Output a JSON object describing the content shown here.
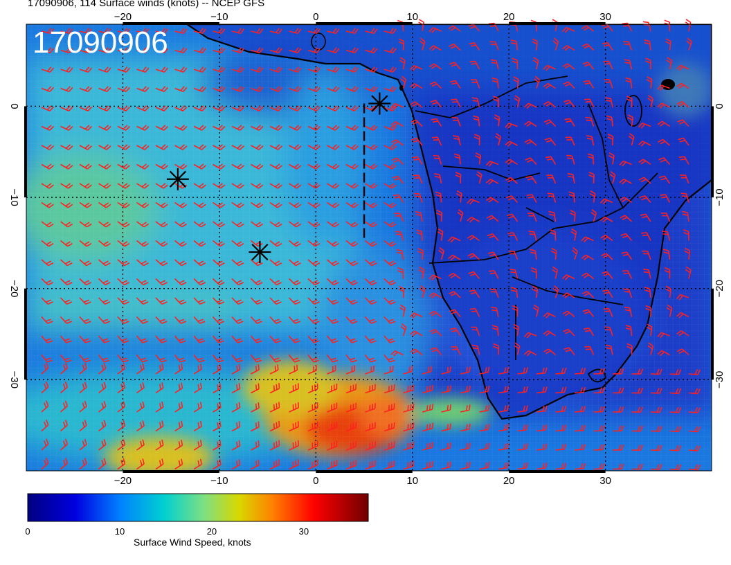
{
  "title": "17090906, 114 Surface winds (knots) -- NCEP GFS",
  "stamp": "17090906",
  "map": {
    "lon_range": [
      -30,
      41
    ],
    "lat_range": [
      -40,
      9
    ],
    "grid_lons": [
      -20,
      -10,
      0,
      10,
      20,
      30
    ],
    "grid_lats": [
      0,
      -10,
      -20,
      -30
    ],
    "lon_tick_labels": [
      "−20",
      "−10",
      "0",
      "10",
      "20",
      "30"
    ],
    "lat_tick_labels": [
      "0",
      "−10",
      "−20",
      "−30"
    ],
    "barb_color": "#ff2020",
    "coast_color": "#000000",
    "markers": [
      {
        "lon": 6.6,
        "lat": 0.3
      },
      {
        "lon": -14.3,
        "lat": -8.0
      },
      {
        "lon": -5.8,
        "lat": -16.0
      }
    ],
    "track_line": {
      "lon": 5,
      "lat_from": 0.3,
      "lat_to": -14.8
    }
  },
  "colorbar": {
    "label": "Surface Wind Speed, knots",
    "min": 0,
    "max": 37,
    "tick_values": [
      0,
      10,
      20,
      30
    ],
    "tick_labels": [
      "0",
      "10",
      "20",
      "30"
    ],
    "colors": [
      "#00007f",
      "#0000ff",
      "#0080ff",
      "#00d4d4",
      "#80ff80",
      "#d8d800",
      "#ff8000",
      "#ff0000",
      "#7f0000"
    ]
  }
}
